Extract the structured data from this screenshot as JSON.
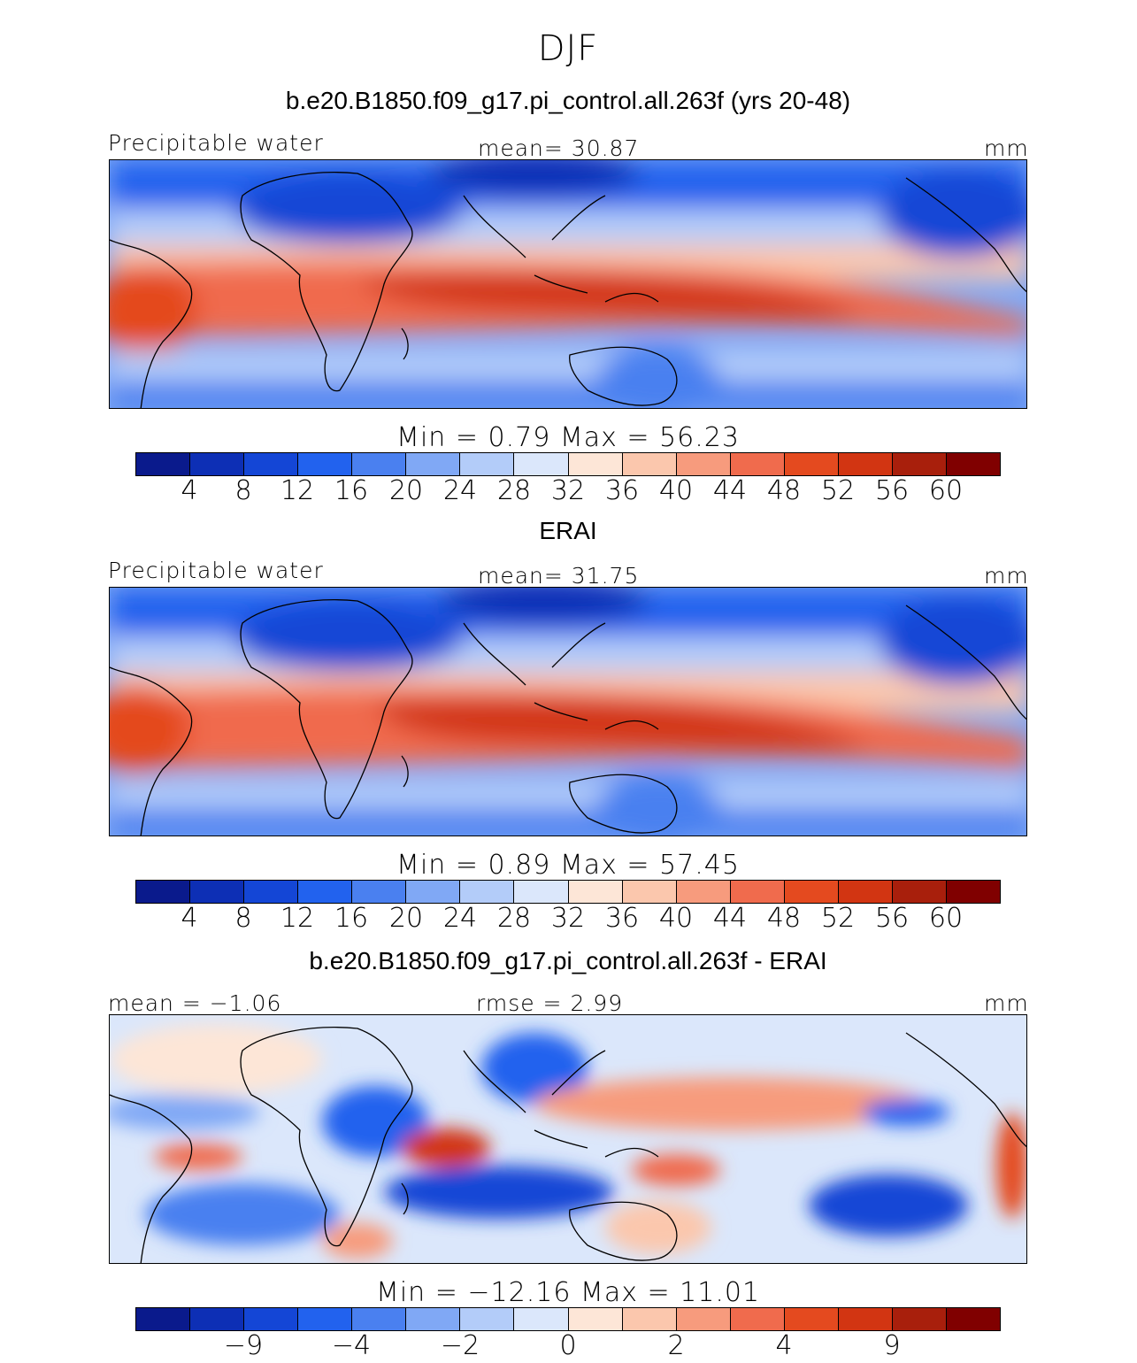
{
  "figure": {
    "title": "DJF",
    "units": "mm",
    "variable": "Precipitable water"
  },
  "panels": [
    {
      "title": "b.e20.B1850.f09_g17.pi_control.all.263f (yrs 20-48)",
      "left_label": "Precipitable water",
      "center_label": "mean=  30.87",
      "right_label": "mm",
      "minmax": "Min =   0.79 Max =  56.23"
    },
    {
      "title": "ERAI",
      "left_label": "Precipitable water",
      "center_label": "mean=  31.75",
      "right_label": "mm",
      "minmax": "Min =   0.89 Max =  57.45"
    },
    {
      "title": "b.e20.B1850.f09_g17.pi_control.all.263f - ERAI",
      "left_label": "mean =  −1.06",
      "center_label": "rmse =   2.99",
      "right_label": "mm",
      "minmax": "Min = −12.16 Max =  11.01"
    }
  ],
  "colorbar_abs": {
    "colors": [
      "#0a1a8c",
      "#0d2fb5",
      "#1446d6",
      "#2262ee",
      "#4a80f0",
      "#80a8f5",
      "#b3ccf9",
      "#dbe7fb",
      "#fde6d7",
      "#fbc7ad",
      "#f79b7d",
      "#f06b4d",
      "#e44a1f",
      "#d23512",
      "#a81f0c",
      "#800000"
    ],
    "ticks": [
      "4",
      "8",
      "12",
      "16",
      "20",
      "24",
      "28",
      "32",
      "36",
      "40",
      "44",
      "48",
      "52",
      "56",
      "60"
    ]
  },
  "colorbar_diff": {
    "colors": [
      "#0a1a8c",
      "#0d2fb5",
      "#1446d6",
      "#2262ee",
      "#4a80f0",
      "#80a8f5",
      "#b3ccf9",
      "#dbe7fb",
      "#fde6d7",
      "#fbc7ad",
      "#f79b7d",
      "#f06b4d",
      "#e44a1f",
      "#d23512",
      "#a81f0c",
      "#800000"
    ],
    "ticks": [
      "−9",
      "−4",
      "−2",
      "0",
      "2",
      "4",
      "9"
    ]
  },
  "chart_data": [
    {
      "type": "heatmap",
      "title": "b.e20.B1850.f09_g17.pi_control.all.263f (yrs 20-48)",
      "variable": "Precipitable water",
      "units": "mm",
      "mean": 30.87,
      "min": 0.79,
      "max": 56.23,
      "levels": [
        4,
        8,
        12,
        16,
        20,
        24,
        28,
        32,
        36,
        40,
        44,
        48,
        52,
        56,
        60
      ]
    },
    {
      "type": "heatmap",
      "title": "ERAI",
      "variable": "Precipitable water",
      "units": "mm",
      "mean": 31.75,
      "min": 0.89,
      "max": 57.45,
      "levels": [
        4,
        8,
        12,
        16,
        20,
        24,
        28,
        32,
        36,
        40,
        44,
        48,
        52,
        56,
        60
      ]
    },
    {
      "type": "heatmap",
      "title": "b.e20.B1850.f09_g17.pi_control.all.263f - ERAI",
      "units": "mm",
      "mean": -1.06,
      "rmse": 2.99,
      "min": -12.16,
      "max": 11.01,
      "levels": [
        -9,
        -4,
        -2,
        0,
        2,
        4,
        9
      ]
    }
  ]
}
